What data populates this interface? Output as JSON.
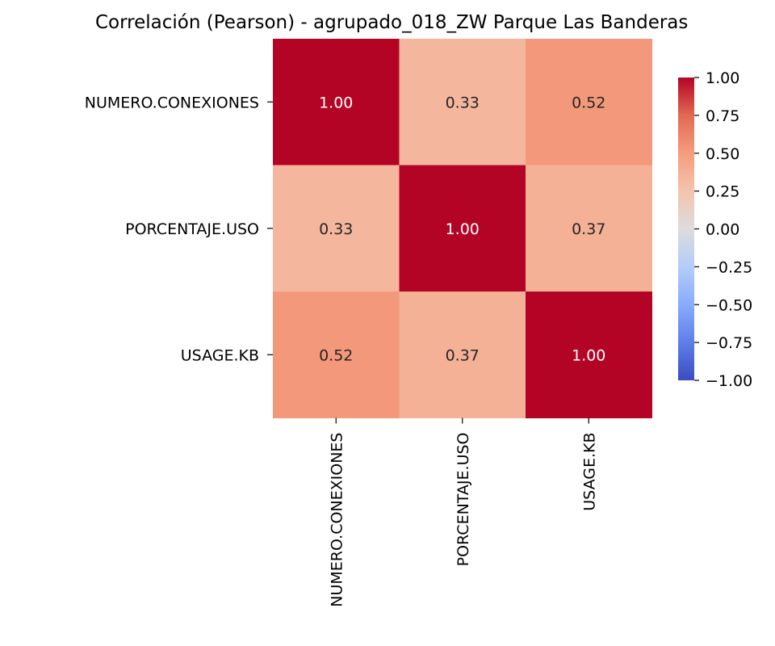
{
  "chart_data": {
    "type": "heatmap",
    "title": "Correlación (Pearson) - agrupado_018_ZW Parque Las Banderas",
    "row_labels": [
      "NUMERO.CONEXIONES",
      "PORCENTAJE.USO",
      "USAGE.KB"
    ],
    "col_labels": [
      "NUMERO.CONEXIONES",
      "PORCENTAJE.USO",
      "USAGE.KB"
    ],
    "values": [
      [
        1.0,
        0.33,
        0.52
      ],
      [
        0.33,
        1.0,
        0.37
      ],
      [
        0.52,
        0.37,
        1.0
      ]
    ],
    "value_format": "0.00",
    "colormap": "coolwarm",
    "vmin": -1.0,
    "vmax": 1.0,
    "colorbar_ticks": [
      "1.00",
      "0.75",
      "0.50",
      "0.25",
      "0.00",
      "−0.25",
      "−0.50",
      "−0.75",
      "−1.00"
    ],
    "colorbar_tick_values": [
      1.0,
      0.75,
      0.5,
      0.25,
      0.0,
      -0.25,
      -0.5,
      -0.75,
      -1.0
    ],
    "colorbar_position": "right"
  }
}
